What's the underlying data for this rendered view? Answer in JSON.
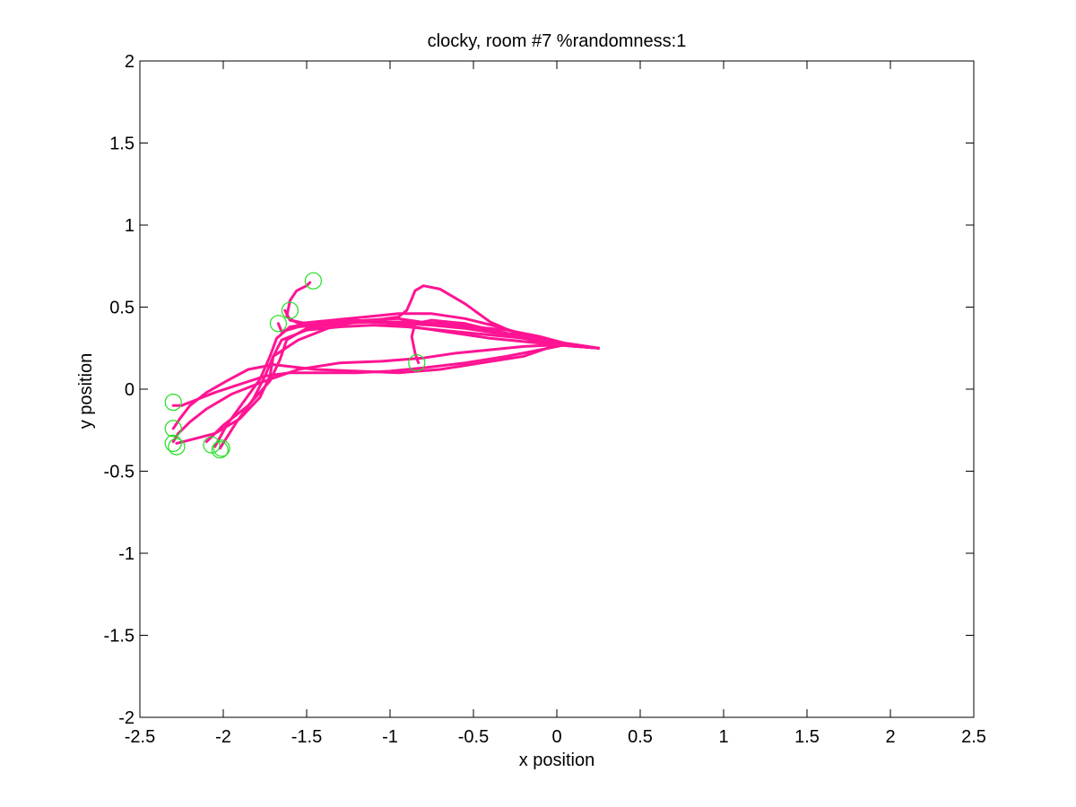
{
  "chart_data": {
    "type": "line",
    "title": "clocky, room #7 %randomness:1",
    "xlabel": "x position",
    "ylabel": "y position",
    "xlim": [
      -2.5,
      2.5
    ],
    "ylim": [
      -2,
      2
    ],
    "xticks": [
      -2.5,
      -2,
      -1.5,
      -1,
      -0.5,
      0,
      0.5,
      1,
      1.5,
      2,
      2.5
    ],
    "yticks": [
      -2,
      -1.5,
      -1,
      -0.5,
      0,
      0.5,
      1,
      1.5,
      2
    ],
    "xtick_labels": [
      "-2.5",
      "-2",
      "-1.5",
      "-1",
      "-0.5",
      "0",
      "0.5",
      "1",
      "1.5",
      "2",
      "2.5"
    ],
    "ytick_labels": [
      "-2",
      "-1.5",
      "-1",
      "-0.5",
      "0",
      "0.5",
      "1",
      "1.5",
      "2"
    ],
    "grid": false,
    "legend": "none",
    "colors": {
      "trajectory": "#ff1493",
      "endpoint_marker": "#22dd22"
    },
    "series": [
      {
        "x": [
          0.25,
          0.05,
          -0.1,
          -0.3,
          -0.55,
          -0.8,
          -1.0,
          -1.2,
          -1.4,
          -1.6,
          -1.75,
          -1.9,
          -2.05,
          -2.15,
          -2.25,
          -2.3
        ],
        "y": [
          0.25,
          0.27,
          0.24,
          0.2,
          0.16,
          0.13,
          0.11,
          0.1,
          0.1,
          0.1,
          0.08,
          0.03,
          -0.02,
          -0.06,
          -0.1,
          -0.1
        ]
      },
      {
        "x": [
          0.25,
          0.0,
          -0.2,
          -0.45,
          -0.7,
          -0.95,
          -1.2,
          -1.45,
          -1.7,
          -1.85,
          -1.98,
          -2.1,
          -2.2,
          -2.26,
          -2.3
        ],
        "y": [
          0.25,
          0.27,
          0.2,
          0.16,
          0.12,
          0.1,
          0.11,
          0.12,
          0.15,
          0.12,
          0.05,
          -0.02,
          -0.1,
          -0.18,
          -0.24
        ]
      },
      {
        "x": [
          0.25,
          0.0,
          -0.2,
          -0.4,
          -0.6,
          -0.8,
          -1.05,
          -1.3,
          -1.55,
          -1.75,
          -1.95,
          -2.1,
          -2.2,
          -2.27,
          -2.3
        ],
        "y": [
          0.25,
          0.27,
          0.26,
          0.24,
          0.22,
          0.19,
          0.17,
          0.16,
          0.12,
          0.05,
          -0.03,
          -0.12,
          -0.2,
          -0.27,
          -0.32
        ]
      },
      {
        "x": [
          0.25,
          0.05,
          -0.15,
          -0.35,
          -0.55,
          -0.75,
          -0.95,
          -1.15,
          -1.35,
          -1.55,
          -1.7,
          -1.72,
          -1.78,
          -1.9,
          -2.05,
          -2.2,
          -2.28
        ],
        "y": [
          0.25,
          0.28,
          0.31,
          0.35,
          0.38,
          0.4,
          0.43,
          0.42,
          0.38,
          0.3,
          0.2,
          0.08,
          -0.05,
          -0.18,
          -0.27,
          -0.31,
          -0.33
        ]
      },
      {
        "x": [
          0.25,
          0.05,
          -0.1,
          -0.3,
          -0.5,
          -0.7,
          -0.9,
          -1.1,
          -1.3,
          -1.5,
          -1.62,
          -1.66,
          -1.72,
          -1.85,
          -2.0,
          -2.1
        ],
        "y": [
          0.25,
          0.28,
          0.32,
          0.36,
          0.38,
          0.4,
          0.41,
          0.41,
          0.4,
          0.37,
          0.3,
          0.18,
          0.05,
          -0.1,
          -0.22,
          -0.32
        ]
      },
      {
        "x": [
          0.25,
          0.0,
          -0.2,
          -0.4,
          -0.6,
          -0.8,
          -1.0,
          -1.2,
          -1.4,
          -1.6,
          -1.68,
          -1.72,
          -1.78,
          -1.88,
          -1.98,
          -2.05
        ],
        "y": [
          0.25,
          0.27,
          0.29,
          0.31,
          0.34,
          0.37,
          0.4,
          0.42,
          0.41,
          0.38,
          0.31,
          0.2,
          0.06,
          -0.08,
          -0.22,
          -0.35
        ]
      },
      {
        "x": [
          0.25,
          0.05,
          -0.1,
          -0.3,
          -0.5,
          -0.7,
          -0.9,
          -1.1,
          -1.3,
          -1.5,
          -1.65,
          -1.7,
          -1.75,
          -1.82,
          -1.92,
          -2.02
        ],
        "y": [
          0.25,
          0.28,
          0.3,
          0.32,
          0.34,
          0.36,
          0.38,
          0.39,
          0.38,
          0.36,
          0.3,
          0.2,
          0.08,
          -0.06,
          -0.2,
          -0.36
        ]
      },
      {
        "x": [
          0.25,
          0.05,
          -0.15,
          -0.35,
          -0.55,
          -0.75,
          -0.95,
          -1.15,
          -1.35,
          -1.55,
          -1.65,
          -1.67
        ],
        "y": [
          0.25,
          0.28,
          0.3,
          0.34,
          0.37,
          0.39,
          0.4,
          0.41,
          0.4,
          0.38,
          0.35,
          0.4
        ]
      },
      {
        "x": [
          0.25,
          0.0,
          -0.2,
          -0.4,
          -0.55,
          -0.7,
          -0.8,
          -0.85,
          -0.87,
          -0.9,
          -0.95,
          -1.1,
          -1.3,
          -1.5,
          -1.6,
          -1.63
        ],
        "y": [
          0.25,
          0.27,
          0.32,
          0.41,
          0.52,
          0.61,
          0.63,
          0.6,
          0.55,
          0.48,
          0.44,
          0.42,
          0.41,
          0.4,
          0.42,
          0.48
        ]
      },
      {
        "x": [
          0.25,
          0.05,
          -0.15,
          -0.35,
          -0.55,
          -0.75,
          -0.85,
          -0.87,
          -0.85,
          -0.83
        ],
        "y": [
          0.25,
          0.28,
          0.31,
          0.35,
          0.4,
          0.42,
          0.4,
          0.32,
          0.22,
          0.16
        ]
      },
      {
        "x": [
          0.25,
          0.05,
          -0.15,
          -0.35,
          -0.55,
          -0.75,
          -0.95,
          -1.15,
          -1.35,
          -1.55,
          -1.62,
          -1.6,
          -1.56,
          -1.5,
          -1.48
        ],
        "y": [
          0.25,
          0.28,
          0.32,
          0.38,
          0.43,
          0.46,
          0.46,
          0.44,
          0.42,
          0.4,
          0.44,
          0.54,
          0.6,
          0.63,
          0.65
        ]
      }
    ],
    "markers": {
      "x": [
        -1.46,
        -1.6,
        -1.67,
        -0.84,
        -2.3,
        -2.3,
        -2.3,
        -2.28,
        -2.07,
        -2.02,
        -2.01
      ],
      "y": [
        0.66,
        0.48,
        0.4,
        0.16,
        -0.08,
        -0.24,
        -0.33,
        -0.35,
        -0.34,
        -0.37,
        -0.36
      ]
    }
  }
}
